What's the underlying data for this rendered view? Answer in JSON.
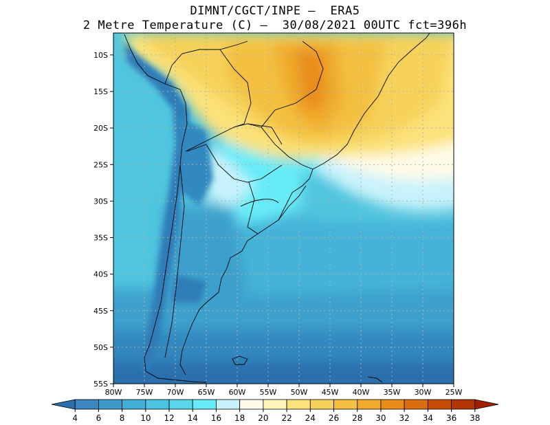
{
  "header": {
    "line1": "DIMNT/CGCT/INPE –  ERA5",
    "line2": "2 Metre Temperature (C) –  30/08/2021 00UTC fct=396h"
  },
  "map": {
    "lat_labels": [
      "10S",
      "15S",
      "20S",
      "25S",
      "30S",
      "35S",
      "40S",
      "45S",
      "50S",
      "55S"
    ],
    "lon_labels": [
      "80W",
      "75W",
      "70W",
      "65W",
      "60W",
      "55W",
      "50W",
      "45W",
      "40W",
      "35W",
      "30W",
      "25W"
    ],
    "lat_range": [
      -55,
      -7
    ],
    "lon_range": [
      -80,
      -25
    ]
  },
  "colorbar": {
    "levels": [
      "4",
      "6",
      "8",
      "10",
      "12",
      "14",
      "16",
      "18",
      "20",
      "22",
      "24",
      "26",
      "28",
      "30",
      "32",
      "34",
      "36",
      "38"
    ],
    "colors": [
      "#2b6fad",
      "#3a86bf",
      "#3b9ac8",
      "#42afd6",
      "#4cc3df",
      "#5ad6ea",
      "#66ecf8",
      "#c8f2fb",
      "#fffbe8",
      "#fff5b8",
      "#fbe27a",
      "#f7d25a",
      "#f3c041",
      "#f0ab2a",
      "#e98c1a",
      "#db6c10",
      "#c84c08",
      "#b53404",
      "#a02000"
    ]
  }
}
